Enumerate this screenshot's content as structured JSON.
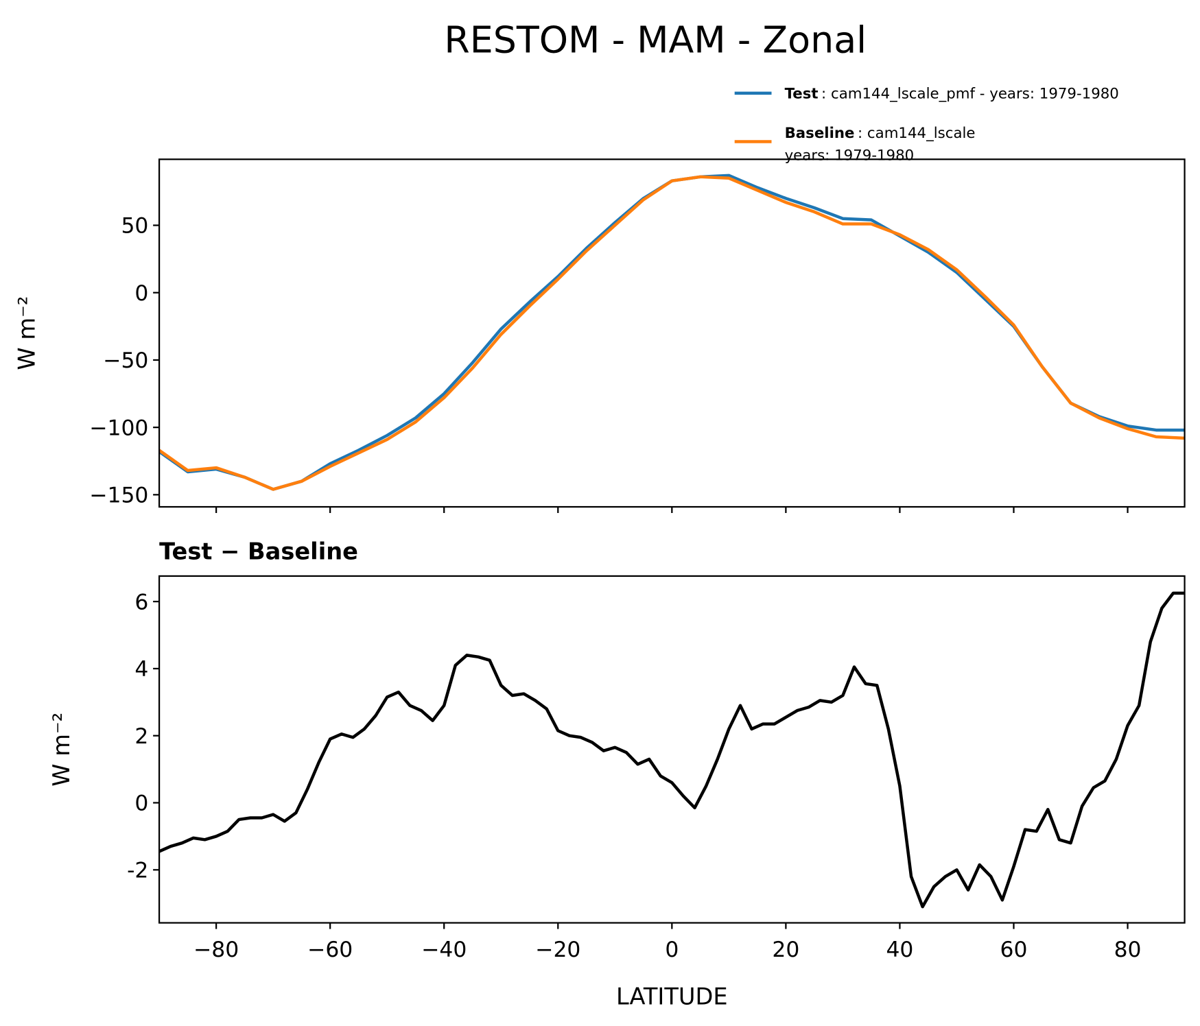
{
  "title": "RESTOM - MAM - Zonal",
  "chart_data": [
    {
      "type": "line",
      "ylabel": "W m⁻²",
      "x": [
        -90,
        -85,
        -80,
        -75,
        -70,
        -65,
        -60,
        -55,
        -50,
        -45,
        -40,
        -35,
        -30,
        -25,
        -20,
        -15,
        -10,
        -5,
        0,
        5,
        10,
        15,
        20,
        25,
        30,
        35,
        40,
        45,
        50,
        55,
        60,
        65,
        70,
        75,
        80,
        85,
        90
      ],
      "series": [
        {
          "name": "Test",
          "legend_label": [
            ": cam144_lscale_pmf - years: 1979-1980"
          ],
          "color": "#1f77b4",
          "values": [
            -118,
            -133,
            -131,
            -137,
            -146,
            -140,
            -127,
            -117,
            -106,
            -93,
            -75,
            -52,
            -27,
            -7,
            12,
            33,
            52,
            70,
            83,
            86,
            87,
            78,
            70,
            63,
            55,
            54,
            42,
            30,
            15,
            -5,
            -25,
            -55,
            -82,
            -92,
            -99,
            -102,
            -102
          ]
        },
        {
          "name": "Baseline",
          "legend_label": [
            ": cam144_lscale",
            "years: 1979-1980"
          ],
          "color": "#ff7f0e",
          "values": [
            -117,
            -132,
            -130,
            -137,
            -146,
            -140,
            -129,
            -119,
            -109,
            -96,
            -78,
            -56,
            -31,
            -10,
            10,
            31,
            50,
            69,
            83,
            86,
            85,
            76,
            67,
            60,
            51,
            51,
            43,
            32,
            17,
            -3,
            -24,
            -55,
            -82,
            -93,
            -101,
            -107,
            -108
          ]
        }
      ],
      "xlim": [
        -90,
        90
      ],
      "xticks": [
        -80,
        -60,
        -40,
        -20,
        0,
        20,
        40,
        60,
        80
      ],
      "show_xtick_labels": false,
      "ylim": [
        -159,
        99
      ],
      "yticks": [
        50,
        0,
        {
          "value": -50,
          "label": "−50"
        },
        {
          "value": -100,
          "label": "−100"
        },
        {
          "value": -150,
          "label": "−150"
        }
      ],
      "legend": "upper right"
    },
    {
      "type": "line",
      "title": "Test − Baseline",
      "ylabel": "W m⁻²",
      "xlabel": "LATITUDE",
      "x": [
        -90,
        -88,
        -86,
        -84,
        -82,
        -80,
        -78,
        -76,
        -74,
        -72,
        -70,
        -68,
        -66,
        -64,
        -62,
        -60,
        -58,
        -56,
        -54,
        -52,
        -50,
        -48,
        -46,
        -44,
        -42,
        -40,
        -38,
        -36,
        -34,
        -32,
        -30,
        -28,
        -26,
        -24,
        -22,
        -20,
        -18,
        -16,
        -14,
        -12,
        -10,
        -8,
        -6,
        -4,
        -2,
        0,
        2,
        4,
        6,
        8,
        10,
        12,
        14,
        16,
        18,
        20,
        22,
        24,
        26,
        28,
        30,
        32,
        34,
        36,
        38,
        40,
        42,
        44,
        46,
        48,
        50,
        52,
        54,
        56,
        58,
        60,
        62,
        64,
        66,
        68,
        70,
        72,
        74,
        76,
        78,
        80,
        82,
        84,
        86,
        88,
        90
      ],
      "series": [
        {
          "color": "#000000",
          "values": [
            -1.45,
            -1.3,
            -1.2,
            -1.05,
            -1.1,
            -1.0,
            -0.85,
            -0.5,
            -0.45,
            -0.45,
            -0.35,
            -0.55,
            -0.3,
            0.4,
            1.2,
            1.9,
            2.05,
            1.95,
            2.2,
            2.6,
            3.15,
            3.3,
            2.9,
            2.75,
            2.45,
            2.9,
            4.1,
            4.4,
            4.35,
            4.25,
            3.5,
            3.2,
            3.25,
            3.05,
            2.8,
            2.15,
            2.0,
            1.95,
            1.8,
            1.55,
            1.65,
            1.5,
            1.15,
            1.3,
            0.8,
            0.6,
            0.2,
            -0.15,
            0.5,
            1.3,
            2.2,
            2.9,
            2.2,
            2.35,
            2.35,
            2.55,
            2.75,
            2.85,
            3.05,
            3.0,
            3.2,
            4.05,
            3.55,
            3.5,
            2.2,
            0.5,
            -2.2,
            -3.1,
            -2.5,
            -2.2,
            -2.0,
            -2.6,
            -1.85,
            -2.2,
            -2.9,
            -1.9,
            -0.8,
            -0.85,
            -0.2,
            -1.1,
            -1.2,
            -0.1,
            0.45,
            0.65,
            1.3,
            2.3,
            2.9,
            4.8,
            5.8,
            6.25,
            6.25
          ]
        }
      ],
      "xlim": [
        -90,
        90
      ],
      "xticks": [
        {
          "value": -80,
          "label": "−80"
        },
        {
          "value": -60,
          "label": "−60"
        },
        {
          "value": -40,
          "label": "−40"
        },
        {
          "value": -20,
          "label": "−20"
        },
        0,
        20,
        40,
        60,
        80
      ],
      "show_xtick_labels": true,
      "ylim": [
        -3.58,
        6.76
      ],
      "yticks": [
        6,
        4,
        2,
        0,
        -2
      ]
    }
  ]
}
